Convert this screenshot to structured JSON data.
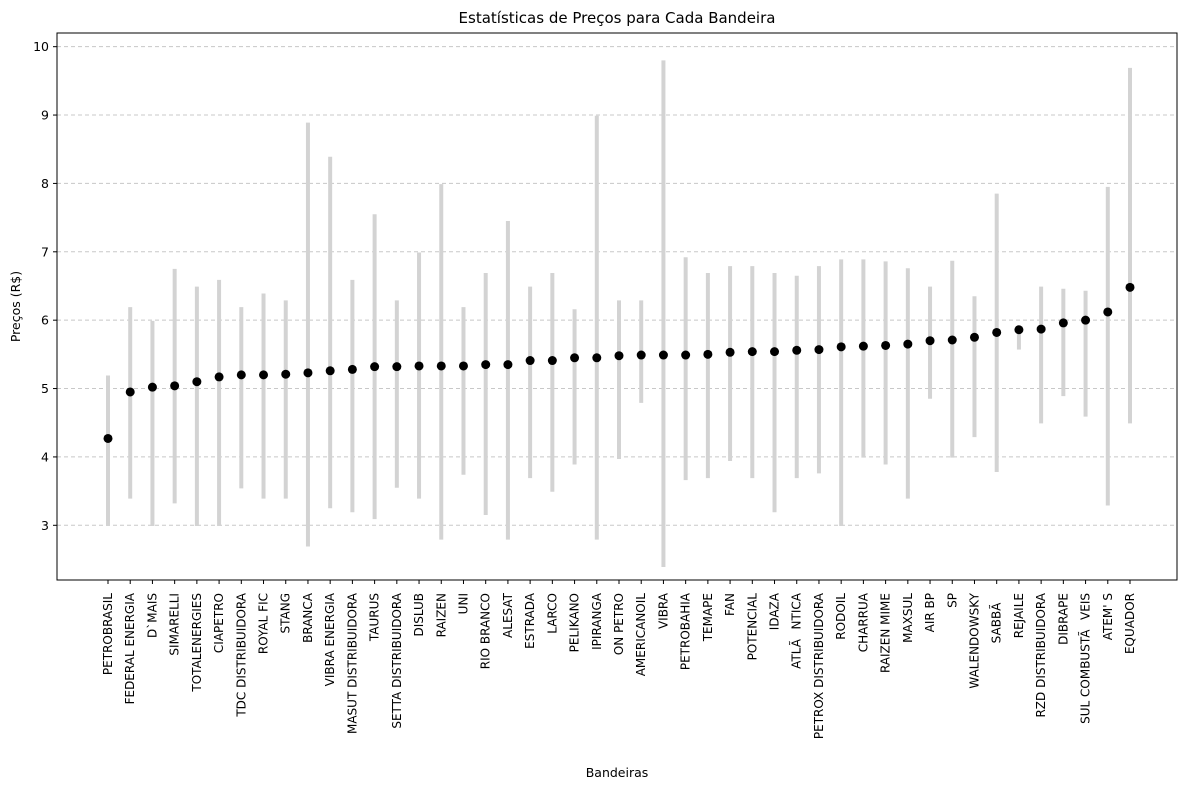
{
  "chart_data": {
    "type": "scatter",
    "title": "Estatísticas de Preços para Cada Bandeira",
    "xlabel": "Bandeiras",
    "ylabel": "Preços (R$)",
    "ylim": [
      2.2,
      10.2
    ],
    "yticks": [
      3,
      4,
      5,
      6,
      7,
      8,
      9,
      10
    ],
    "grid": "y-dashed",
    "range_color": "#d3d3d3",
    "point_color": "#000000",
    "categories": [
      "PETROBRASIL",
      "FEDERAL ENERGIA",
      "D`MAIS",
      "SIMARELLI",
      "TOTALENERGIES",
      "CIAPETRO",
      "TDC DISTRIBUIDORA",
      "ROYAL FIC",
      "STANG",
      "BRANCA",
      "VIBRA ENERGIA",
      "MASUT DISTRIBUIDORA",
      "TAURUS",
      "SETTA DISTRIBUIDORA",
      "DISLUB",
      "RAIZEN",
      "UNI",
      "RIO BRANCO",
      "ALESAT",
      "ESTRADA",
      "LARCO",
      "PELIKANO",
      "IPIRANGA",
      "ON PETRO",
      "AMERICANOIL",
      "VIBRA",
      "PETROBAHIA",
      "TEMAPE",
      "FAN",
      "POTENCIAL",
      "IDAZA",
      "ATLÃNTICA",
      "PETROX DISTRIBUIDORA",
      "RODOIL",
      "CHARRUA",
      "RAIZEN MIME",
      "MAXSUL",
      "AIR BP",
      "SP",
      "WALENDOWSKY",
      "SABBÃ",
      "REJAILE",
      "RZD DISTRIBUIDORA",
      "DIBRAPE",
      "SUL COMBUSTÃVEIS",
      "ATEM' S",
      "EQUADOR"
    ],
    "mean": [
      4.27,
      4.95,
      5.02,
      5.04,
      5.1,
      5.17,
      5.2,
      5.2,
      5.21,
      5.23,
      5.26,
      5.28,
      5.32,
      5.32,
      5.33,
      5.33,
      5.33,
      5.35,
      5.35,
      5.41,
      5.41,
      5.45,
      5.45,
      5.48,
      5.49,
      5.49,
      5.49,
      5.5,
      5.53,
      5.54,
      5.54,
      5.56,
      5.57,
      5.61,
      5.62,
      5.63,
      5.65,
      5.7,
      5.71,
      5.75,
      5.82,
      5.86,
      5.87,
      5.96,
      6.0,
      6.12,
      6.48
    ],
    "min": [
      2.99,
      3.39,
      2.99,
      3.32,
      2.99,
      2.99,
      3.54,
      3.39,
      3.39,
      2.69,
      3.25,
      3.19,
      3.09,
      3.55,
      3.39,
      2.79,
      3.74,
      3.15,
      2.79,
      3.69,
      3.49,
      3.89,
      2.79,
      3.97,
      4.79,
      2.39,
      3.66,
      3.69,
      3.94,
      3.69,
      3.19,
      3.69,
      3.76,
      2.99,
      3.99,
      3.89,
      3.39,
      4.85,
      3.99,
      4.29,
      3.78,
      5.57,
      4.49,
      4.89,
      4.59,
      3.29,
      4.49
    ],
    "max": [
      5.19,
      6.19,
      5.99,
      6.75,
      6.49,
      6.59,
      6.19,
      6.39,
      6.29,
      8.89,
      8.39,
      6.59,
      7.55,
      6.29,
      6.99,
      7.99,
      6.19,
      6.69,
      7.45,
      6.49,
      6.69,
      6.16,
      8.99,
      6.29,
      6.29,
      9.8,
      6.92,
      6.69,
      6.79,
      6.79,
      6.69,
      6.65,
      6.79,
      6.89,
      6.89,
      6.86,
      6.76,
      6.49,
      6.87,
      6.35,
      7.85,
      5.86,
      6.49,
      6.46,
      6.43,
      7.95,
      9.69
    ]
  }
}
